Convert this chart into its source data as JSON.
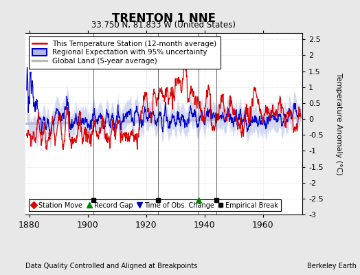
{
  "title": "TRENTON 1 NNE",
  "subtitle": "33.750 N, 81.833 W (United States)",
  "ylabel": "Temperature Anomaly (°C)",
  "xlabel_left": "Data Quality Controlled and Aligned at Breakpoints",
  "xlabel_right": "Berkeley Earth",
  "ylim": [
    -3.0,
    2.7
  ],
  "xlim": [
    1878.5,
    1973.5
  ],
  "yticks": [
    -3,
    -2.5,
    -2,
    -1.5,
    -1,
    -0.5,
    0,
    0.5,
    1,
    1.5,
    2,
    2.5
  ],
  "xticks": [
    1880,
    1900,
    1920,
    1940,
    1960
  ],
  "background_color": "#e8e8e8",
  "plot_bg_color": "#ffffff",
  "red_line_color": "#dd0000",
  "blue_line_color": "#0000cc",
  "blue_fill_color": "#b0b8e8",
  "gray_line_color": "#bbbbbb",
  "empirical_break_years": [
    1902,
    1924,
    1944
  ],
  "record_gap_years": [
    1938
  ],
  "seed": 12345
}
